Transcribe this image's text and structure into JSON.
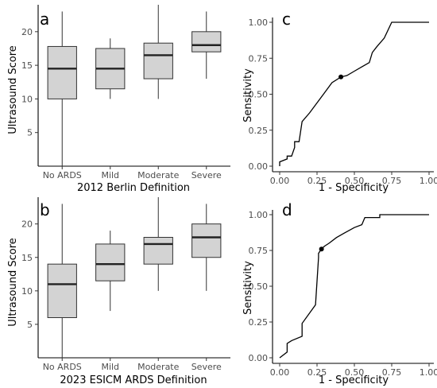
{
  "chart_data": [
    {
      "panel": "a",
      "type": "box",
      "categories": [
        "No ARDS",
        "Mild",
        "Moderate",
        "Severe"
      ],
      "boxes": [
        {
          "min": 0,
          "q1": 10,
          "median": 14.5,
          "q3": 17.8,
          "max": 23
        },
        {
          "min": 10,
          "q1": 11.5,
          "median": 14.5,
          "q3": 17.5,
          "max": 19
        },
        {
          "min": 10,
          "q1": 13,
          "median": 16.5,
          "q3": 18.3,
          "max": 24
        },
        {
          "min": 13,
          "q1": 17,
          "median": 18,
          "q3": 20,
          "max": 23
        }
      ],
      "xlabel": "2012 Berlin Definition",
      "ylabel": "Ultrasound Score",
      "yticks": [
        5,
        10,
        15,
        20
      ],
      "ylim": [
        0,
        24
      ],
      "grid": false,
      "box_color": "#d3d3d3"
    },
    {
      "panel": "b",
      "type": "box",
      "categories": [
        "No ARDS",
        "Mild",
        "Moderate",
        "Severe"
      ],
      "boxes": [
        {
          "min": 0,
          "q1": 6,
          "median": 11,
          "q3": 14,
          "max": 23
        },
        {
          "min": 7,
          "q1": 11.5,
          "median": 14,
          "q3": 17,
          "max": 19
        },
        {
          "min": 10,
          "q1": 14,
          "median": 17,
          "q3": 18,
          "max": 24
        },
        {
          "min": 10,
          "q1": 15,
          "median": 18,
          "q3": 20,
          "max": 23
        }
      ],
      "xlabel": "2023 ESICM ARDS Definition",
      "ylabel": "Ultrasound Score",
      "yticks": [
        5,
        10,
        15,
        20
      ],
      "ylim": [
        0,
        24
      ],
      "grid": false,
      "box_color": "#d3d3d3"
    },
    {
      "panel": "c",
      "type": "line",
      "x": [
        0,
        0,
        0.05,
        0.05,
        0.08,
        0.1,
        0.1,
        0.13,
        0.15,
        0.2,
        0.25,
        0.3,
        0.35,
        0.41,
        0.45,
        0.5,
        0.55,
        0.6,
        0.62,
        0.65,
        0.7,
        0.75,
        1.0
      ],
      "y": [
        0,
        0.03,
        0.05,
        0.07,
        0.07,
        0.13,
        0.17,
        0.17,
        0.31,
        0.37,
        0.44,
        0.51,
        0.58,
        0.62,
        0.63,
        0.66,
        0.69,
        0.72,
        0.79,
        0.83,
        0.89,
        1.0,
        1.0
      ],
      "highlight_point": {
        "x": 0.41,
        "y": 0.62
      },
      "xlabel": "1 - Specificity",
      "ylabel": "Sensitivity",
      "xticks": [
        "0.00",
        "0.25",
        "0.50",
        "0.75",
        "1.00"
      ],
      "yticks": [
        "0.00",
        "0.25",
        "0.50",
        "0.75",
        "1.00"
      ],
      "xlim": [
        0,
        1
      ],
      "ylim": [
        0,
        1
      ],
      "grid": false
    },
    {
      "panel": "d",
      "type": "line",
      "x": [
        0,
        0.05,
        0.05,
        0.08,
        0.15,
        0.15,
        0.24,
        0.26,
        0.26,
        0.28,
        0.29,
        0.3,
        0.33,
        0.38,
        0.43,
        0.5,
        0.55,
        0.57,
        0.67,
        0.67,
        1.0
      ],
      "y": [
        0,
        0.04,
        0.1,
        0.12,
        0.15,
        0.24,
        0.37,
        0.7,
        0.73,
        0.76,
        0.77,
        0.78,
        0.8,
        0.84,
        0.87,
        0.91,
        0.93,
        0.98,
        0.98,
        1.0,
        1.0
      ],
      "highlight_point": {
        "x": 0.28,
        "y": 0.76
      },
      "xlabel": "1 - Specificity",
      "ylabel": "Sensitivity",
      "xticks": [
        "0.00",
        "0.25",
        "0.50",
        "0.75",
        "1.00"
      ],
      "yticks": [
        "0.00",
        "0.25",
        "0.50",
        "0.75",
        "1.00"
      ],
      "xlim": [
        0,
        1
      ],
      "ylim": [
        0,
        1
      ],
      "grid": false
    }
  ]
}
